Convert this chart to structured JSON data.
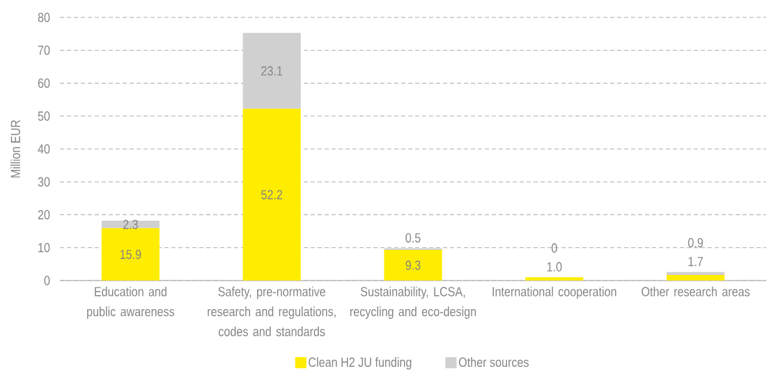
{
  "chart_data": {
    "type": "bar",
    "stacked": true,
    "categories": [
      "Education and public awareness",
      "Safety, pre-normative research and regulations, codes and standards",
      "Sustainability, LCSA, recycling and eco-design",
      "International cooperation",
      "Other research areas"
    ],
    "series": [
      {
        "name": "Clean H2 JU funding",
        "color": "#ffed00",
        "values": [
          15.9,
          52.2,
          9.3,
          1.0,
          1.7
        ],
        "value_labels": [
          "15.9",
          "52.2",
          "9.3",
          "1.0",
          "1.7"
        ]
      },
      {
        "name": "Other sources",
        "color": "#d0d0d0",
        "values": [
          2.3,
          23.1,
          0.5,
          0,
          0.9
        ],
        "value_labels": [
          "2.3",
          "23.1",
          "0.5",
          "0",
          "0.9"
        ]
      }
    ],
    "ylabel": "Million EUR",
    "ylim": [
      0,
      80
    ],
    "yticks": [
      0,
      10,
      20,
      30,
      40,
      50,
      60,
      70,
      80
    ],
    "grid": "y",
    "legend": "bottom"
  }
}
